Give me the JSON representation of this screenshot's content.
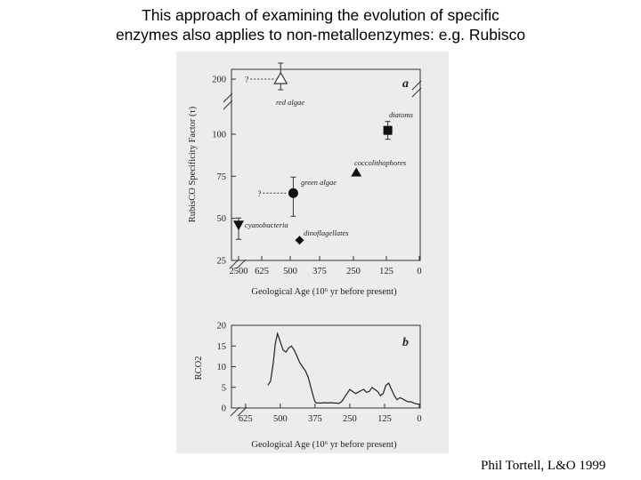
{
  "title": {
    "line1": "This approach of examining the evolution of specific",
    "line2": "enzymes also applies to non-metalloenzymes: e.g. Rubisco"
  },
  "credit": "Phil Tortell, L&O 1999",
  "chart_data": [
    {
      "type": "scatter",
      "panel_label": "a",
      "ylabel": "RubisCO Specificity Factor (τ)",
      "xlabel": "Geological Age (10⁶ yr before present)",
      "x_ticks": [
        "2500",
        "625",
        "500",
        "375",
        "250",
        "125",
        "0"
      ],
      "y_ticks": [
        "25",
        "50",
        "75",
        "100",
        "200"
      ],
      "points": [
        {
          "label": "red algae",
          "x": 550,
          "y": 200,
          "marker": "triangle-up-open",
          "uncertain_origin": true
        },
        {
          "label": "diatoms",
          "x": 125,
          "y": 107,
          "marker": "square"
        },
        {
          "label": "coccolithophores",
          "x": 250,
          "y": 77,
          "marker": "triangle-up"
        },
        {
          "label": "green algae",
          "x": 500,
          "y": 65,
          "marker": "circle",
          "uncertain_origin": true
        },
        {
          "label": "cyanobacteria",
          "x": 2500,
          "y": 46,
          "marker": "triangle-down"
        },
        {
          "label": "dinoflagellates",
          "x": 475,
          "y": 37,
          "marker": "diamond"
        }
      ],
      "question_mark": "?"
    },
    {
      "type": "line",
      "panel_label": "b",
      "ylabel": "RCO2",
      "xlabel": "Geological Age (10⁶ yr before present)",
      "x_ticks": [
        "625",
        "500",
        "375",
        "250",
        "125",
        "0"
      ],
      "y_ticks": [
        "0",
        "5",
        "10",
        "15",
        "20"
      ],
      "xlim": [
        650,
        0
      ],
      "ylim": [
        0,
        20
      ],
      "x": [
        545,
        535,
        525,
        518,
        510,
        505,
        500,
        490,
        480,
        470,
        460,
        450,
        440,
        430,
        420,
        410,
        400,
        390,
        380,
        375,
        370,
        360,
        350,
        340,
        330,
        320,
        310,
        300,
        290,
        280,
        270,
        260,
        250,
        240,
        230,
        220,
        210,
        200,
        190,
        180,
        170,
        160,
        150,
        140,
        130,
        120,
        110,
        100,
        90,
        80,
        70,
        60,
        50,
        40,
        30,
        20,
        10,
        0
      ],
      "y": [
        5.5,
        6.5,
        11,
        15.5,
        18,
        17,
        16,
        14,
        13.5,
        14.5,
        15,
        14,
        12.5,
        11,
        10,
        9,
        7.5,
        5,
        2.5,
        1.5,
        1.2,
        1.2,
        1.2,
        1.3,
        1.2,
        1.3,
        1.2,
        1.2,
        1.1,
        1.5,
        2.5,
        3.5,
        4.5,
        4,
        3.5,
        3.8,
        4.2,
        4.5,
        3.8,
        4,
        5,
        4.5,
        4,
        3,
        3.5,
        5.5,
        6,
        4.5,
        3,
        2,
        2.5,
        2.2,
        1.8,
        1.5,
        1.5,
        1.2,
        1,
        0.9
      ]
    }
  ]
}
